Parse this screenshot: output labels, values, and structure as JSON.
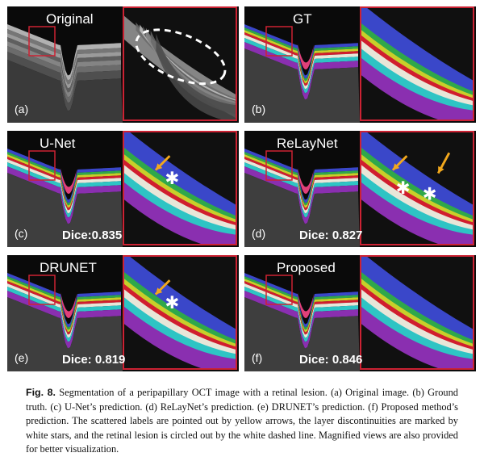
{
  "figure": {
    "panels": [
      {
        "key": "a",
        "title": "Original",
        "label": "(a)",
        "dice": "",
        "mode": "original",
        "arrows": 0,
        "stars": 0,
        "ellipse": true
      },
      {
        "key": "b",
        "title": "GT",
        "label": "(b)",
        "dice": "",
        "mode": "seg",
        "arrows": 0,
        "stars": 0,
        "ellipse": false
      },
      {
        "key": "c",
        "title": "U-Net",
        "label": "(c)",
        "dice": "Dice:0.835",
        "mode": "seg",
        "arrows": 1,
        "stars": 1,
        "ellipse": false
      },
      {
        "key": "d",
        "title": "ReLayNet",
        "label": "(d)",
        "dice": "Dice: 0.827",
        "mode": "seg",
        "arrows": 2,
        "stars": 2,
        "ellipse": false
      },
      {
        "key": "e",
        "title": "DRUNET",
        "label": "(e)",
        "dice": "Dice: 0.819",
        "mode": "seg",
        "arrows": 1,
        "stars": 1,
        "ellipse": false
      },
      {
        "key": "f",
        "title": "Proposed",
        "label": "(f)",
        "dice": "Dice: 0.846",
        "mode": "seg",
        "arrows": 0,
        "stars": 0,
        "ellipse": false
      }
    ],
    "colors": {
      "frame": "#cc2233",
      "arrow": "#f2a81d",
      "layers": [
        "#3a47c9",
        "#2fa84a",
        "#c8cf2a",
        "#d01e2e",
        "#e8e6d8",
        "#2ec4c4",
        "#8a2fb0"
      ],
      "cup": "#e0407a"
    }
  },
  "caption": {
    "label": "Fig. 8.",
    "text": " Segmentation of a peripapillary OCT image with a retinal lesion. (a) Original image. (b) Ground truth. (c) U-Net’s prediction. (d) ReLayNet’s prediction. (e) DRUNET’s prediction. (f) Proposed method’s prediction. The scattered labels are pointed out by yellow arrows, the layer discontinuities are marked by white stars, and the retinal lesion is circled out by the white dashed line. Magnified views are also provided for better visualization."
  }
}
